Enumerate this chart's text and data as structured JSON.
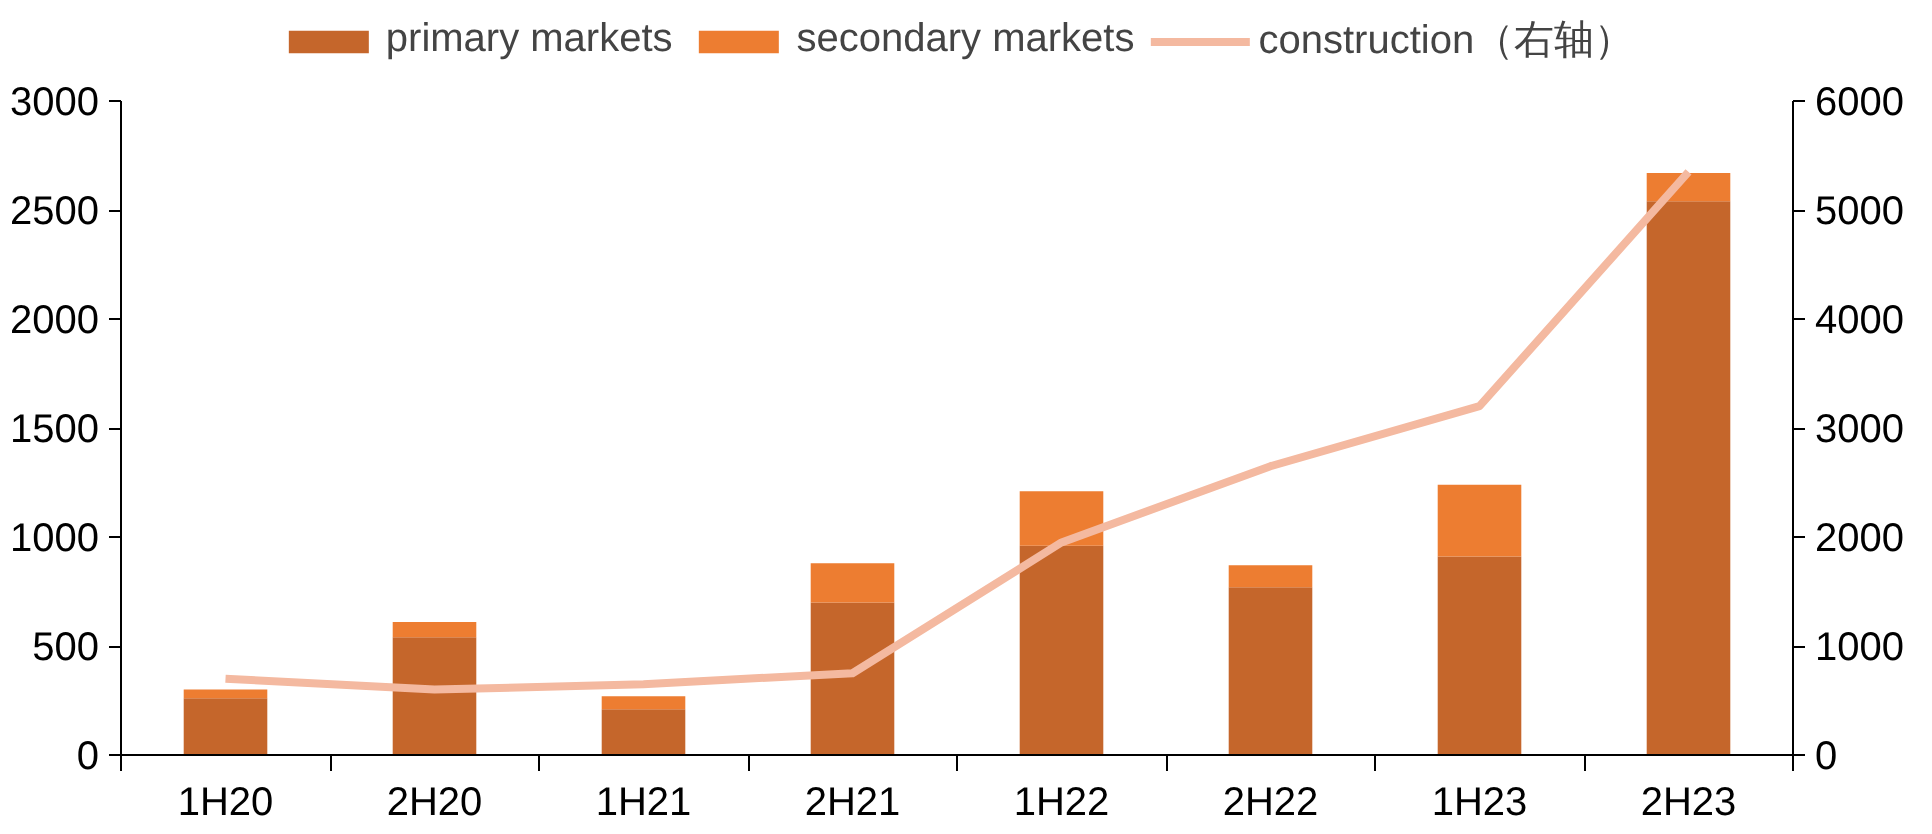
{
  "chart_data": {
    "type": "bar",
    "stacked": true,
    "categories": [
      "1H20",
      "2H20",
      "1H21",
      "2H21",
      "1H22",
      "2H22",
      "1H23",
      "2H23"
    ],
    "series": [
      {
        "name": "primary markets",
        "color": "#c5662b",
        "values": [
          260,
          540,
          210,
          700,
          960,
          770,
          910,
          2540
        ]
      },
      {
        "name": "secondary markets",
        "color": "#ed7d31",
        "values": [
          40,
          70,
          60,
          180,
          250,
          100,
          330,
          130
        ]
      },
      {
        "name": "construction（右轴）",
        "type": "line",
        "axis": "y2",
        "color": "#f4b9a0",
        "values": [
          700,
          600,
          650,
          750,
          1950,
          2650,
          3200,
          5350
        ]
      }
    ],
    "ylim": [
      0,
      3000
    ],
    "yticks": [
      0,
      500,
      1000,
      1500,
      2000,
      2500,
      3000
    ],
    "y2lim": [
      0,
      6000
    ],
    "y2ticks": [
      0,
      1000,
      2000,
      3000,
      4000,
      5000,
      6000
    ],
    "grid": false,
    "legend": "top",
    "marker": "none",
    "line_style": "solid"
  }
}
